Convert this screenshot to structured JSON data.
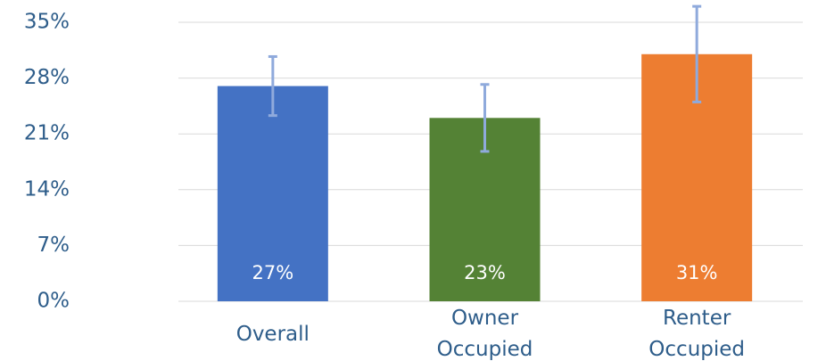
{
  "chart_data": {
    "type": "bar",
    "categories": [
      "Overall",
      "Owner Occupied",
      "Renter Occupied"
    ],
    "values": [
      27,
      23,
      31
    ],
    "value_labels": [
      "27%",
      "23%",
      "31%"
    ],
    "errors": [
      3.7,
      4.2,
      6
    ],
    "colors": [
      "#4472c4",
      "#548235",
      "#ed7d31"
    ],
    "error_color": "#8faadc",
    "ylim": [
      0,
      35
    ],
    "yticks": [
      {
        "value": 0,
        "label": "0%"
      },
      {
        "value": 7,
        "label": "7%"
      },
      {
        "value": 14,
        "label": "14%"
      },
      {
        "value": 21,
        "label": "21%"
      },
      {
        "value": 28,
        "label": "28%"
      },
      {
        "value": 35,
        "label": "35%"
      }
    ],
    "grid": true
  }
}
